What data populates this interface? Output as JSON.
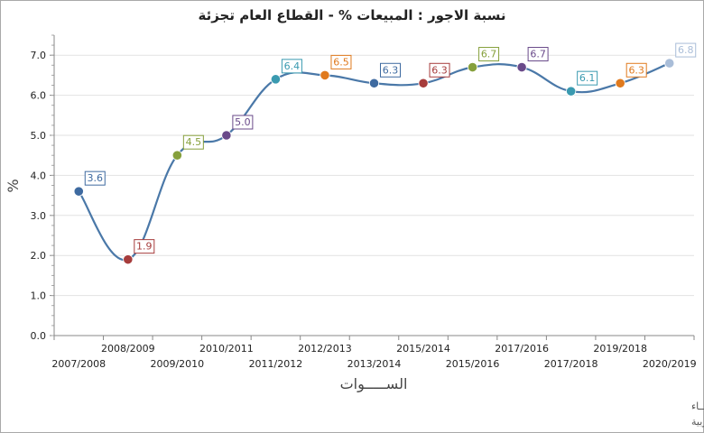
{
  "chart_data": {
    "type": "line",
    "title": "نسبة الاجور : المبيعات %  -  القطاع العام تجزئة",
    "xlabel": "الســـــوات",
    "ylabel": "%",
    "ylim": [
      0,
      7.5
    ],
    "yticks": [
      "0.0",
      "1.0",
      "2.0",
      "3.0",
      "4.0",
      "5.0",
      "6.0",
      "7.0"
    ],
    "grid": true,
    "categories": [
      "2007/2008",
      "2008/2009",
      "2009/2010",
      "2010/2011",
      "2011/2012",
      "2012/2013",
      "2013/2014",
      "2014/2015",
      "2015/2016",
      "2016/2017",
      "2017/2018",
      "2018/2019",
      "2019/2020"
    ],
    "category_labels": [
      "2007/2008",
      "2008/2009",
      "2009/2010",
      "2010/2011",
      "2011/2012",
      "2012/2013",
      "2013/2014",
      "2015/2014",
      "2015/2016",
      "2017/2016",
      "2017/2018",
      "2019/2018",
      "2020/2019"
    ],
    "values": [
      3.6,
      1.9,
      4.5,
      5.0,
      6.4,
      6.5,
      6.3,
      6.3,
      6.7,
      6.7,
      6.1,
      6.3,
      6.8
    ],
    "value_labels": [
      "3.6",
      "1.9",
      "4.5",
      "5.0",
      "6.4",
      "6.5",
      "6.3",
      "6.3",
      "6.7",
      "6.7",
      "6.1",
      "6.3",
      "6.8"
    ],
    "line_color": "#4a78a8",
    "point_colors": [
      "#3e6aa0",
      "#a63c3c",
      "#86a03c",
      "#6a4a8a",
      "#3a9ab0",
      "#e07a1e",
      "#3e6aa0",
      "#a63c3c",
      "#86a03c",
      "#6a4a8a",
      "#3a9ab0",
      "#e07a1e",
      "#a9bdd8"
    ]
  },
  "credits": {
    "line1": "حقوق الملكية للجهـــاز المركزي للتعبئة العــامة والأحصـــاء",
    "line2": "المصدر الأساسي للأحصاءات الرسمية لجمهورية مصر العربية"
  }
}
